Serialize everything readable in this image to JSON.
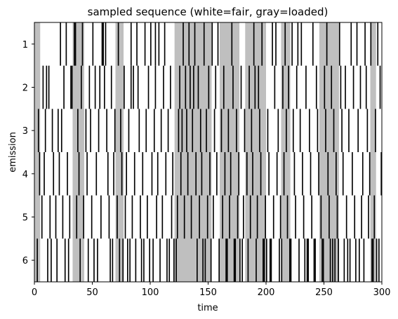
{
  "chart_data": {
    "type": "heatmap",
    "title": "sampled sequence (white=fair, gray=loaded)",
    "xlabel": "time",
    "ylabel": "emission",
    "xlim": [
      0,
      300
    ],
    "x_ticks": [
      0,
      50,
      100,
      150,
      200,
      250,
      300
    ],
    "y_categories": [
      1,
      2,
      3,
      4,
      5,
      6
    ],
    "colors": {
      "fair": "#ffffff",
      "loaded": "#bfbfbf",
      "emission": "#000000"
    },
    "loaded_intervals": [
      [
        0,
        5
      ],
      [
        33,
        43
      ],
      [
        70,
        77
      ],
      [
        121,
        153
      ],
      [
        160,
        177
      ],
      [
        182,
        200
      ],
      [
        213,
        221
      ],
      [
        246,
        263
      ],
      [
        290,
        295
      ]
    ],
    "emission_marks": {
      "1": [
        22,
        27,
        34,
        35,
        41,
        50,
        58,
        59,
        61,
        72,
        83,
        88,
        95,
        100,
        104,
        107,
        112,
        128,
        133,
        138,
        146,
        153,
        158,
        170,
        189,
        196,
        205,
        208,
        216,
        222,
        227,
        230,
        240,
        252,
        263,
        273,
        278,
        285,
        290,
        296
      ],
      "2": [
        7,
        10,
        12,
        25,
        31,
        32,
        40,
        47,
        52,
        56,
        60,
        66,
        77,
        83,
        85,
        89,
        98,
        104,
        111,
        117,
        125,
        130,
        134,
        137,
        141,
        150,
        156,
        163,
        171,
        178,
        185,
        190,
        193,
        207,
        214,
        219,
        226,
        234,
        243,
        250,
        256,
        264,
        268,
        275,
        281,
        286,
        298
      ],
      "3": [
        3,
        9,
        15,
        20,
        23,
        37,
        44,
        48,
        55,
        62,
        69,
        74,
        81,
        90,
        96,
        103,
        109,
        115,
        124,
        127,
        131,
        136,
        143,
        148,
        155,
        161,
        167,
        174,
        181,
        187,
        194,
        201,
        210,
        217,
        223,
        229,
        237,
        244,
        251,
        258,
        265,
        271,
        279,
        287,
        294
      ],
      "4": [
        4,
        8,
        16,
        21,
        28,
        38,
        45,
        53,
        63,
        68,
        75,
        79,
        86,
        93,
        101,
        106,
        113,
        119,
        126,
        132,
        139,
        144,
        151,
        157,
        164,
        169,
        176,
        183,
        188,
        195,
        202,
        209,
        215,
        224,
        231,
        238,
        245,
        253,
        260,
        266,
        274,
        283,
        289,
        299
      ],
      "5": [
        6,
        13,
        18,
        24,
        30,
        36,
        42,
        49,
        57,
        64,
        71,
        78,
        84,
        91,
        97,
        105,
        110,
        118,
        123,
        129,
        135,
        142,
        149,
        154,
        162,
        168,
        175,
        180,
        186,
        192,
        199,
        206,
        212,
        218,
        225,
        232,
        239,
        247,
        254,
        261,
        269,
        276,
        282,
        288,
        293
      ],
      "6": [
        2,
        11,
        14,
        19,
        26,
        29,
        39,
        46,
        51,
        54,
        65,
        67,
        73,
        76,
        80,
        82,
        87,
        92,
        94,
        99,
        102,
        108,
        114,
        116,
        120,
        122,
        140,
        145,
        147,
        152,
        159,
        165,
        166,
        172,
        173,
        177,
        179,
        184,
        191,
        197,
        198,
        200,
        203,
        204,
        211,
        213,
        220,
        221,
        228,
        233,
        235,
        236,
        241,
        242,
        248,
        249,
        255,
        257,
        259,
        262,
        267,
        270,
        272,
        277,
        280,
        284,
        291,
        292,
        295,
        297
      ]
    }
  }
}
